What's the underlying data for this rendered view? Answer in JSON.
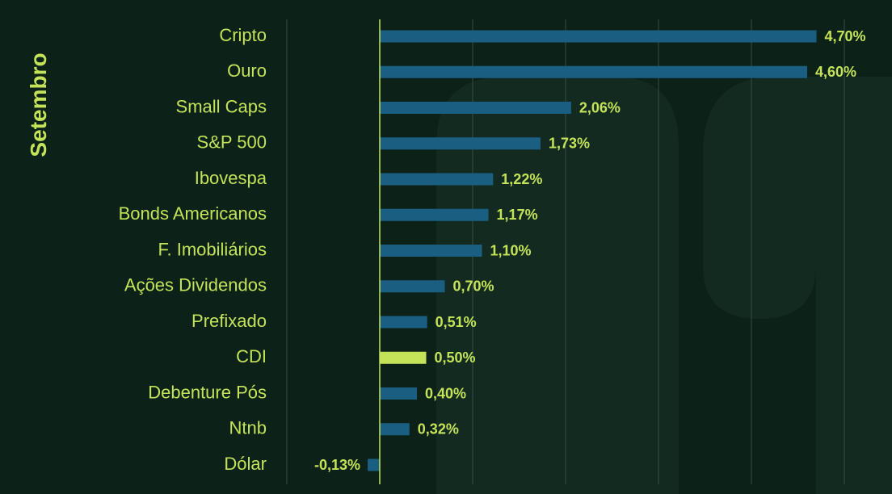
{
  "chart_data": {
    "type": "bar",
    "orientation": "horizontal",
    "title": "Setembro",
    "categories": [
      "Cripto",
      "Ouro",
      "Small Caps",
      "S&P 500",
      "Ibovespa",
      "Bonds Americanos",
      "F. Imobiliários",
      "Ações Dividendos",
      "Prefixado",
      "CDI",
      "Debenture Pós",
      "Ntnb",
      "Dólar"
    ],
    "values": [
      4.7,
      4.6,
      2.06,
      1.73,
      1.22,
      1.17,
      1.1,
      0.7,
      0.51,
      0.5,
      0.4,
      0.32,
      -0.13
    ],
    "value_labels": [
      "4,70%",
      "4,60%",
      "2,06%",
      "1,73%",
      "1,22%",
      "1,17%",
      "1,10%",
      "0,70%",
      "0,51%",
      "0,50%",
      "0,40%",
      "0,32%",
      "-0,13%"
    ],
    "highlight_category": "CDI",
    "xlim": [
      -1,
      5
    ],
    "grid": true,
    "legend": "none"
  },
  "colors": {
    "background": "#0c2118",
    "bar": "#1a5f82",
    "highlight_bar": "#c4e359",
    "text": "#c4e359",
    "grid": "#3a4c44",
    "zero_line": "#c4e359"
  }
}
